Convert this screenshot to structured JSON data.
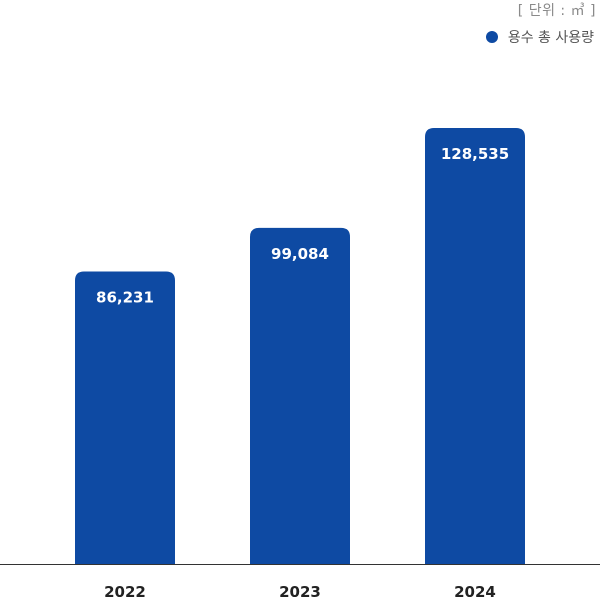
{
  "unit_label": "[ 단위 : ㎥ ]",
  "legend": {
    "label": "용수 총 사용량",
    "color": "#0e4aa3"
  },
  "chart_data": {
    "type": "bar",
    "categories": [
      "2022",
      "2023",
      "2024"
    ],
    "series": [
      {
        "name": "용수 총 사용량",
        "values": [
          86231,
          99084,
          128535
        ],
        "value_labels": [
          "86,231",
          "99,084",
          "128,535"
        ],
        "color": "#0e4aa3"
      }
    ],
    "title": "",
    "xlabel": "",
    "ylabel": "",
    "ylim": [
      0,
      140000
    ],
    "grid": false,
    "legend_position": "top-right"
  }
}
